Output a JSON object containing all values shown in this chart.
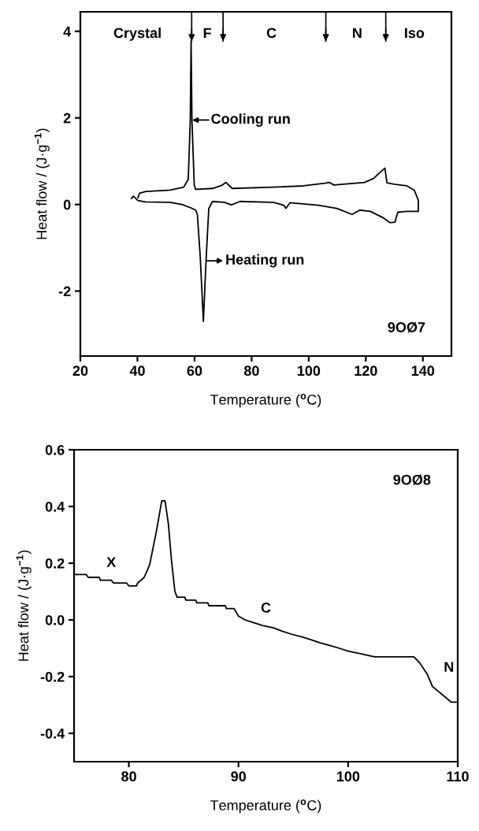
{
  "chart_data": [
    {
      "type": "line",
      "xlabel": "Temperature ($^{o}$C)",
      "ylabel": "Heat flow / (J·g$^{−1}$)",
      "xlim": [
        20,
        150
      ],
      "ylim": [
        -3.5,
        4.45
      ],
      "xticks": [
        20,
        40,
        60,
        80,
        100,
        120,
        140
      ],
      "yticks": [
        -2,
        0,
        2,
        4
      ],
      "series": [
        {
          "color": "#000000",
          "x": [
            37.9,
            38.6,
            40.2,
            42.9,
            51.4,
            55.6,
            58.8,
            60.4,
            61,
            62,
            63.1,
            64.1,
            65,
            66.3,
            70.5,
            72.9,
            75.9,
            87.6,
            91.3,
            92,
            93.4,
            103.5,
            109.9,
            115.2,
            117.9,
            121.6,
            125.9,
            128.5,
            130.2,
            131.2,
            134.4,
            138.4,
            138.4,
            137,
            134.4,
            130,
            127.4,
            126.7,
            125.3,
            122.7,
            119.5,
            108.8,
            107.2,
            105.6,
            98.2,
            87.6,
            73.2,
            71,
            69.5,
            66.3,
            60.4,
            59.9,
            59.1,
            58.8,
            58.5,
            57.8,
            56.2,
            51.4,
            42.9,
            40.7,
            40.2
          ],
          "values": [
            0.14,
            0.19,
            0.09,
            0.06,
            0.05,
            0.0,
            -0.08,
            -0.13,
            -0.23,
            -1.21,
            -2.7,
            -1.21,
            -0.09,
            0.07,
            0.05,
            -0.01,
            0.07,
            0.05,
            -0.02,
            -0.09,
            0.04,
            -0.02,
            -0.09,
            -0.23,
            -0.13,
            -0.16,
            -0.3,
            -0.42,
            -0.41,
            -0.18,
            -0.16,
            -0.16,
            0.1,
            0.33,
            0.43,
            0.47,
            0.5,
            0.84,
            0.76,
            0.6,
            0.51,
            0.45,
            0.51,
            0.49,
            0.43,
            0.4,
            0.37,
            0.51,
            0.44,
            0.37,
            0.35,
            0.45,
            1.93,
            3.77,
            1.93,
            0.58,
            0.4,
            0.33,
            0.3,
            0.26,
            0.16
          ]
        }
      ],
      "ref_lines": [
        {
          "axis": "x",
          "value": 59
        },
        {
          "axis": "x",
          "value": 70
        },
        {
          "axis": "x",
          "value": 106
        },
        {
          "axis": "x",
          "value": 127
        }
      ],
      "annotations": [
        "Crystal",
        "F",
        "C",
        "N",
        "Iso",
        {
          "text": "Cooling run",
          "x": 59.2,
          "y": 1.95
        },
        {
          "text": "Heating run",
          "x": 64.3,
          "y": -1.3
        },
        "9OØ7"
      ]
    },
    {
      "type": "line",
      "xlabel": "Temperature ($^{o}$C)",
      "ylabel": "Heat flow / (J·g$^{−1}$)",
      "xlim": [
        75,
        110
      ],
      "ylim": [
        -0.5,
        0.6
      ],
      "xticks": [
        80,
        90,
        100,
        110
      ],
      "yticks": [
        {
          "value": -0.4,
          "label": "-0.4"
        },
        {
          "value": -0.2,
          "label": "-0.2"
        },
        {
          "value": 0,
          "label": "0.0"
        },
        0.2,
        0.4,
        0.6
      ],
      "series": [
        {
          "color": "#000000",
          "x": [
            75,
            76.1,
            76.3,
            77.3,
            77.4,
            78.4,
            78.6,
            79.8,
            80,
            80.7,
            80.8,
            81.4,
            81.9,
            82.5,
            83,
            83.3,
            83.6,
            83.9,
            84.2,
            84.4,
            85.1,
            85.2,
            86.1,
            86.2,
            87.2,
            87.3,
            88.8,
            88.9,
            89.6,
            90,
            90.6,
            91.4,
            92.2,
            93.2,
            94,
            94.8,
            95.8,
            96.6,
            97.4,
            98.3,
            99.2,
            100,
            101.2,
            102.4,
            106,
            106.5,
            107.2,
            107.7,
            108.8,
            109.4,
            110
          ],
          "values": [
            0.16,
            0.16,
            0.15,
            0.15,
            0.14,
            0.14,
            0.13,
            0.13,
            0.12,
            0.12,
            0.13,
            0.15,
            0.195,
            0.31,
            0.42,
            0.42,
            0.34,
            0.205,
            0.1,
            0.08,
            0.08,
            0.07,
            0.07,
            0.06,
            0.06,
            0.05,
            0.05,
            0.04,
            0.04,
            0.013,
            0.0,
            -0.01,
            -0.02,
            -0.028,
            -0.04,
            -0.05,
            -0.06,
            -0.07,
            -0.08,
            -0.09,
            -0.1,
            -0.11,
            -0.12,
            -0.13,
            -0.13,
            -0.15,
            -0.19,
            -0.235,
            -0.27,
            -0.29,
            -0.29
          ]
        }
      ],
      "annotations": [
        "X",
        "C",
        "N",
        "9OØ8"
      ]
    }
  ]
}
